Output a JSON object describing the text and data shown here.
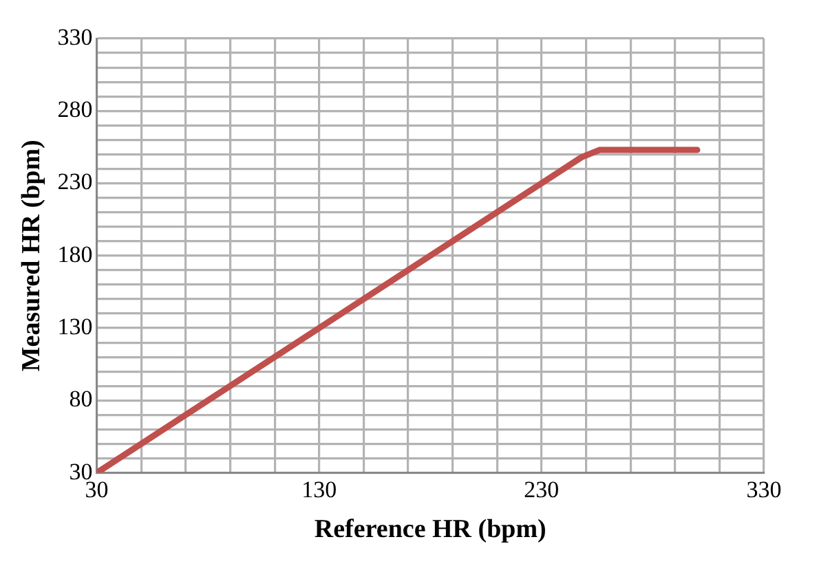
{
  "chart_data": {
    "type": "line",
    "xlabel": "Reference HR (bpm)",
    "ylabel": "Measured HR (bpm)",
    "series": [
      {
        "color": "#c0504d",
        "x": [
          30,
          248,
          256,
          300
        ],
        "values": [
          30,
          248,
          253,
          253
        ]
      }
    ],
    "xlim": [
      30,
      330
    ],
    "ylim": [
      30,
      330
    ],
    "xticks": [
      30,
      {
        "value": 50,
        "label": null
      },
      {
        "value": 70,
        "label": null
      },
      {
        "value": 90,
        "label": null
      },
      {
        "value": 110,
        "label": null
      },
      130,
      {
        "value": 150,
        "label": null
      },
      {
        "value": 170,
        "label": null
      },
      {
        "value": 190,
        "label": null
      },
      {
        "value": 210,
        "label": null
      },
      230,
      {
        "value": 250,
        "label": null
      },
      {
        "value": 270,
        "label": null
      },
      {
        "value": 290,
        "label": null
      },
      {
        "value": 310,
        "label": null
      },
      330
    ],
    "yticks": [
      30,
      {
        "value": 40,
        "label": null
      },
      {
        "value": 50,
        "label": null
      },
      {
        "value": 60,
        "label": null
      },
      {
        "value": 70,
        "label": null
      },
      80,
      {
        "value": 90,
        "label": null
      },
      {
        "value": 100,
        "label": null
      },
      {
        "value": 110,
        "label": null
      },
      {
        "value": 120,
        "label": null
      },
      130,
      {
        "value": 140,
        "label": null
      },
      {
        "value": 150,
        "label": null
      },
      {
        "value": 160,
        "label": null
      },
      {
        "value": 170,
        "label": null
      },
      180,
      {
        "value": 190,
        "label": null
      },
      {
        "value": 200,
        "label": null
      },
      {
        "value": 210,
        "label": null
      },
      {
        "value": 220,
        "label": null
      },
      230,
      {
        "value": 240,
        "label": null
      },
      {
        "value": 250,
        "label": null
      },
      {
        "value": 260,
        "label": null
      },
      {
        "value": 270,
        "label": null
      },
      280,
      {
        "value": 290,
        "label": null
      },
      {
        "value": 300,
        "label": null
      },
      {
        "value": 310,
        "label": null
      },
      {
        "value": 320,
        "label": null
      },
      330
    ],
    "grid": true,
    "marker": "none",
    "line_style": "solid",
    "legend": false
  }
}
